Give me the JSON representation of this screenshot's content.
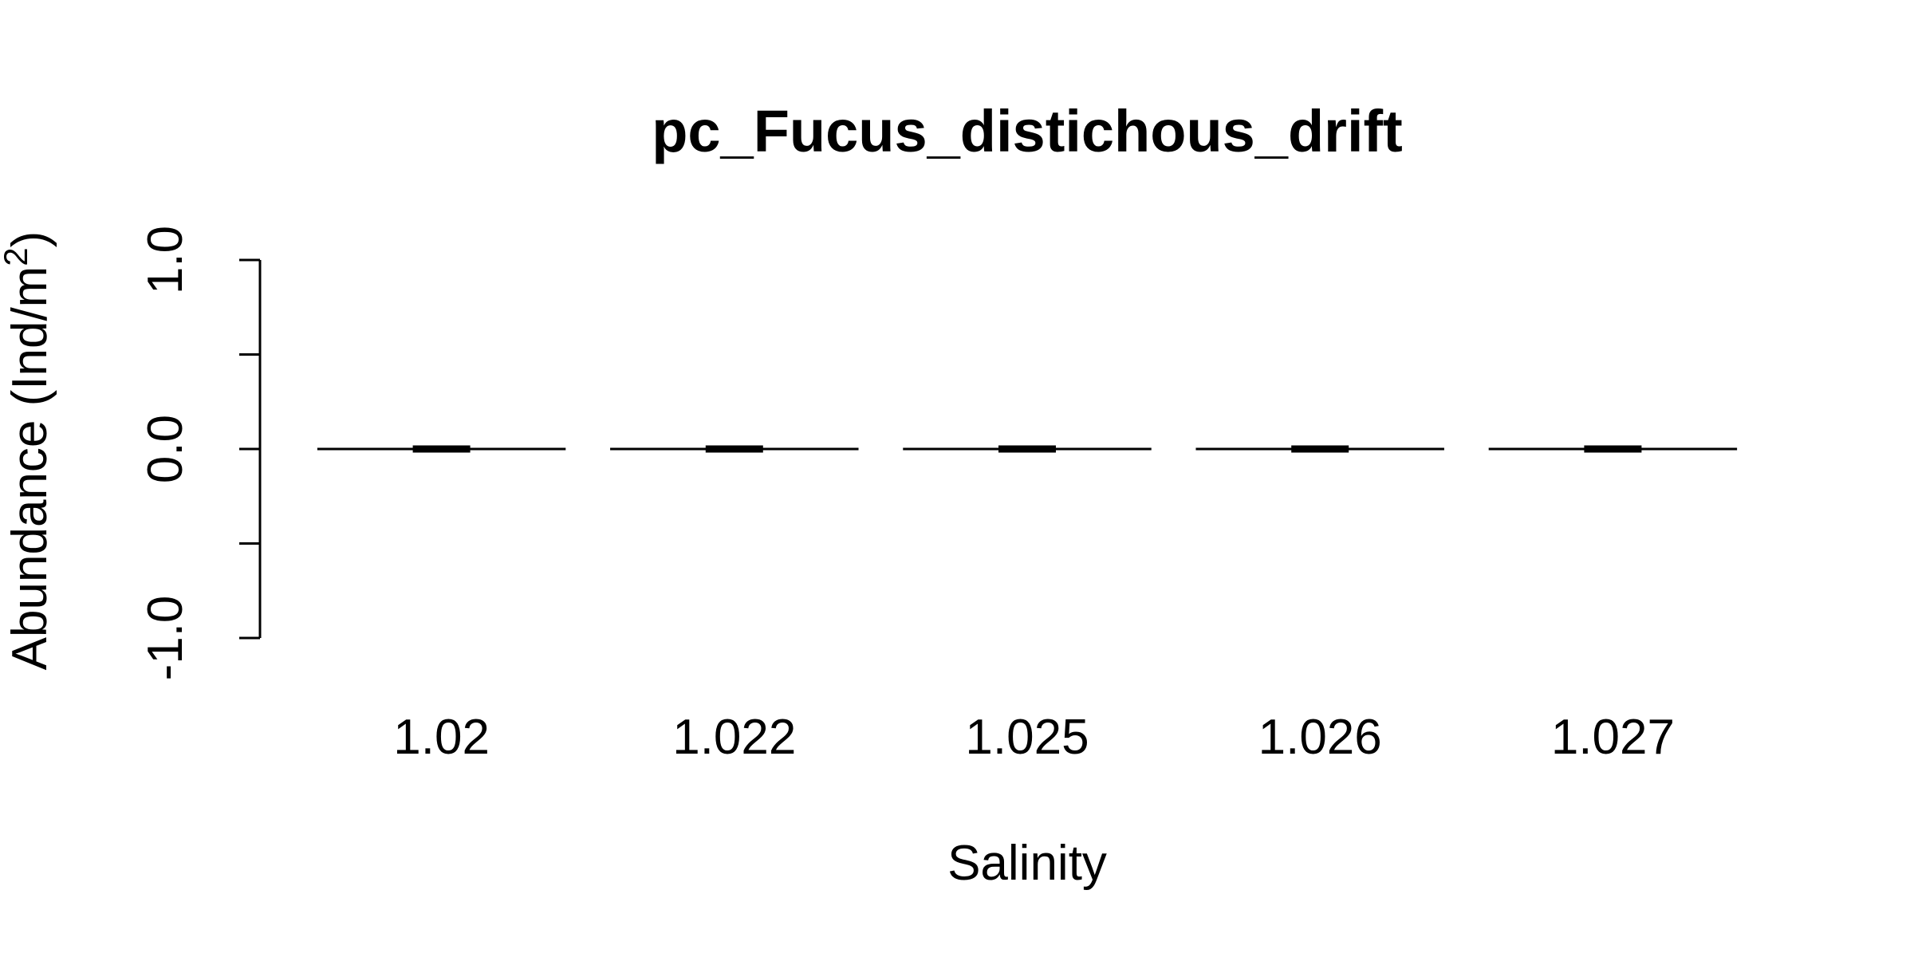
{
  "chart_data": {
    "type": "boxplot",
    "title": "pc_Fucus_distichous_drift",
    "xlabel": "Salinity",
    "ylabel_text": "Abundance (Ind/m",
    "ylabel_superscript": "2",
    "ylabel_close": ")",
    "categories": [
      "1.02",
      "1.022",
      "1.025",
      "1.026",
      "1.027"
    ],
    "boxes": [
      {
        "category": "1.02",
        "min": 0,
        "q1": 0,
        "median": 0,
        "q3": 0,
        "max": 0
      },
      {
        "category": "1.022",
        "min": 0,
        "q1": 0,
        "median": 0,
        "q3": 0,
        "max": 0
      },
      {
        "category": "1.025",
        "min": 0,
        "q1": 0,
        "median": 0,
        "q3": 0,
        "max": 0
      },
      {
        "category": "1.026",
        "min": 0,
        "q1": 0,
        "median": 0,
        "q3": 0,
        "max": 0
      },
      {
        "category": "1.027",
        "min": 0,
        "q1": 0,
        "median": 0,
        "q3": 0,
        "max": 0
      }
    ],
    "ylim": [
      -1.0,
      1.0
    ],
    "yticks": [
      -1.0,
      -0.5,
      0.0,
      0.5,
      1.0
    ],
    "ytick_labels": [
      "-1.0",
      "",
      "0.0",
      "",
      "1.0"
    ],
    "grid": false,
    "colors": {
      "line": "#000000",
      "background": "#ffffff"
    }
  }
}
